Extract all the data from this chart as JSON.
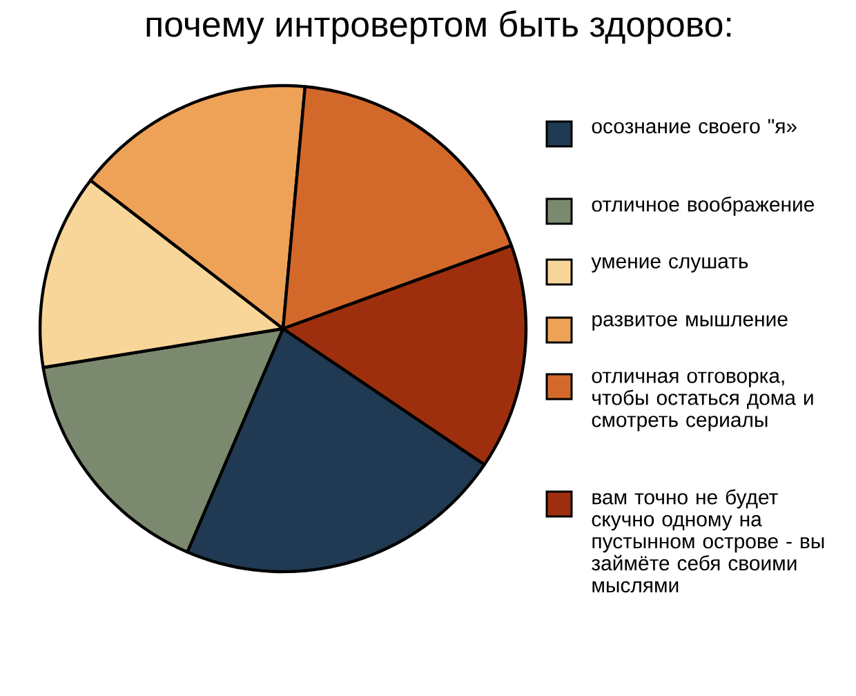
{
  "chart_data": {
    "type": "pie",
    "title": "почему интровертом быть здорово:",
    "categories": [
      "осознание своего \"я»",
      "отличное воображение",
      "умение слушать",
      "развитое мышление",
      "отличная отговорка, чтобы остаться дома и смотреть сериалы",
      "вам точно не будет скучно одному на пустынном острове - вы займёте себя своими мыслями"
    ],
    "values": [
      22,
      16,
      13,
      16,
      18,
      15
    ],
    "colors": [
      "#1f3a52",
      "#7b8a6e",
      "#f8d69a",
      "#eea257",
      "#d2692a",
      "#9e2f0e"
    ],
    "legend": "right"
  }
}
